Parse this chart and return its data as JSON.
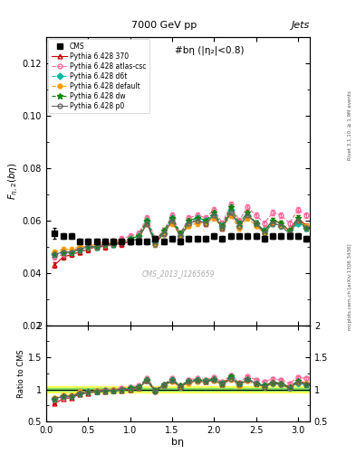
{
  "title_top": "7000 GeV pp",
  "title_right": "Jets",
  "plot_title": "#bη (|η₂|<0.8)",
  "watermark": "CMS_2013_I1265659",
  "xlabel": "bη",
  "ylabel_main": "F_{η,2}(bη)",
  "ylabel_ratio": "Ratio to CMS",
  "right_label": "mcplots.cern.ch [arXiv:1306.3436]",
  "rivet_label": "Rivet 3.1.10; ≥ 1.9M events",
  "xlim": [
    0,
    3.14159
  ],
  "ylim_main": [
    0.02,
    0.13
  ],
  "ylim_ratio": [
    0.5,
    2.0
  ],
  "cms_x": [
    0.1,
    0.2,
    0.3,
    0.4,
    0.5,
    0.6,
    0.7,
    0.8,
    0.9,
    1.0,
    1.1,
    1.2,
    1.3,
    1.4,
    1.5,
    1.6,
    1.7,
    1.8,
    1.9,
    2.0,
    2.1,
    2.2,
    2.3,
    2.4,
    2.5,
    2.6,
    2.7,
    2.8,
    2.9,
    3.0,
    3.1
  ],
  "cms_y": [
    0.055,
    0.054,
    0.054,
    0.052,
    0.052,
    0.052,
    0.052,
    0.052,
    0.052,
    0.052,
    0.052,
    0.052,
    0.053,
    0.052,
    0.053,
    0.052,
    0.053,
    0.053,
    0.053,
    0.054,
    0.053,
    0.054,
    0.054,
    0.054,
    0.054,
    0.053,
    0.054,
    0.054,
    0.054,
    0.054,
    0.053
  ],
  "cms_yerr": [
    0.002,
    0.001,
    0.001,
    0.001,
    0.001,
    0.001,
    0.001,
    0.001,
    0.001,
    0.001,
    0.001,
    0.001,
    0.001,
    0.001,
    0.001,
    0.001,
    0.001,
    0.001,
    0.001,
    0.001,
    0.001,
    0.001,
    0.001,
    0.001,
    0.001,
    0.001,
    0.001,
    0.001,
    0.001,
    0.001,
    0.001
  ],
  "series": [
    {
      "label": "Pythia 6.428 370",
      "color": "#cc0000",
      "linestyle": "-",
      "marker": "^",
      "markerfill": "none",
      "x": [
        0.1,
        0.2,
        0.3,
        0.4,
        0.5,
        0.6,
        0.7,
        0.8,
        0.9,
        1.0,
        1.1,
        1.2,
        1.3,
        1.4,
        1.5,
        1.6,
        1.7,
        1.8,
        1.9,
        2.0,
        2.1,
        2.2,
        2.3,
        2.4,
        2.5,
        2.6,
        2.7,
        2.8,
        2.9,
        3.0,
        3.1
      ],
      "y": [
        0.043,
        0.046,
        0.047,
        0.048,
        0.049,
        0.05,
        0.05,
        0.051,
        0.051,
        0.052,
        0.053,
        0.059,
        0.052,
        0.055,
        0.06,
        0.054,
        0.059,
        0.06,
        0.059,
        0.062,
        0.057,
        0.064,
        0.058,
        0.062,
        0.059,
        0.056,
        0.06,
        0.059,
        0.056,
        0.061,
        0.058
      ],
      "yerr": [
        0.001,
        0.001,
        0.001,
        0.001,
        0.001,
        0.001,
        0.001,
        0.001,
        0.001,
        0.001,
        0.001,
        0.001,
        0.001,
        0.001,
        0.001,
        0.001,
        0.001,
        0.001,
        0.001,
        0.001,
        0.001,
        0.001,
        0.001,
        0.001,
        0.001,
        0.001,
        0.001,
        0.001,
        0.001,
        0.001,
        0.001
      ]
    },
    {
      "label": "Pythia 6.428 atlas-csc",
      "color": "#ff6699",
      "linestyle": "--",
      "marker": "o",
      "markerfill": "none",
      "x": [
        0.1,
        0.2,
        0.3,
        0.4,
        0.5,
        0.6,
        0.7,
        0.8,
        0.9,
        1.0,
        1.1,
        1.2,
        1.3,
        1.4,
        1.5,
        1.6,
        1.7,
        1.8,
        1.9,
        2.0,
        2.1,
        2.2,
        2.3,
        2.4,
        2.5,
        2.6,
        2.7,
        2.8,
        2.9,
        3.0,
        3.1
      ],
      "y": [
        0.046,
        0.047,
        0.048,
        0.05,
        0.05,
        0.051,
        0.052,
        0.052,
        0.053,
        0.054,
        0.055,
        0.061,
        0.053,
        0.056,
        0.062,
        0.055,
        0.061,
        0.062,
        0.061,
        0.064,
        0.059,
        0.066,
        0.06,
        0.065,
        0.062,
        0.059,
        0.063,
        0.062,
        0.059,
        0.064,
        0.062
      ],
      "yerr": [
        0.001,
        0.001,
        0.001,
        0.001,
        0.001,
        0.001,
        0.001,
        0.001,
        0.001,
        0.001,
        0.001,
        0.001,
        0.001,
        0.001,
        0.001,
        0.001,
        0.001,
        0.001,
        0.001,
        0.001,
        0.001,
        0.001,
        0.001,
        0.001,
        0.001,
        0.001,
        0.001,
        0.001,
        0.001,
        0.001,
        0.001
      ]
    },
    {
      "label": "Pythia 6.428 d6t",
      "color": "#00bbaa",
      "linestyle": "--",
      "marker": "D",
      "markerfill": "#00bbaa",
      "x": [
        0.1,
        0.2,
        0.3,
        0.4,
        0.5,
        0.6,
        0.7,
        0.8,
        0.9,
        1.0,
        1.1,
        1.2,
        1.3,
        1.4,
        1.5,
        1.6,
        1.7,
        1.8,
        1.9,
        2.0,
        2.1,
        2.2,
        2.3,
        2.4,
        2.5,
        2.6,
        2.7,
        2.8,
        2.9,
        3.0,
        3.1
      ],
      "y": [
        0.047,
        0.048,
        0.048,
        0.049,
        0.05,
        0.05,
        0.051,
        0.051,
        0.052,
        0.053,
        0.054,
        0.06,
        0.052,
        0.055,
        0.061,
        0.054,
        0.059,
        0.061,
        0.06,
        0.062,
        0.058,
        0.064,
        0.058,
        0.062,
        0.059,
        0.056,
        0.059,
        0.058,
        0.055,
        0.059,
        0.057
      ],
      "yerr": [
        0.001,
        0.001,
        0.001,
        0.001,
        0.001,
        0.001,
        0.001,
        0.001,
        0.001,
        0.001,
        0.001,
        0.001,
        0.001,
        0.001,
        0.001,
        0.001,
        0.001,
        0.001,
        0.001,
        0.001,
        0.001,
        0.001,
        0.001,
        0.001,
        0.001,
        0.001,
        0.001,
        0.001,
        0.001,
        0.001,
        0.001
      ]
    },
    {
      "label": "Pythia 6.428 default",
      "color": "#ff9900",
      "linestyle": "--",
      "marker": "o",
      "markerfill": "#ff9900",
      "x": [
        0.1,
        0.2,
        0.3,
        0.4,
        0.5,
        0.6,
        0.7,
        0.8,
        0.9,
        1.0,
        1.1,
        1.2,
        1.3,
        1.4,
        1.5,
        1.6,
        1.7,
        1.8,
        1.9,
        2.0,
        2.1,
        2.2,
        2.3,
        2.4,
        2.5,
        2.6,
        2.7,
        2.8,
        2.9,
        3.0,
        3.1
      ],
      "y": [
        0.048,
        0.049,
        0.049,
        0.05,
        0.05,
        0.051,
        0.051,
        0.052,
        0.052,
        0.052,
        0.053,
        0.059,
        0.051,
        0.055,
        0.059,
        0.054,
        0.058,
        0.059,
        0.059,
        0.061,
        0.057,
        0.062,
        0.057,
        0.061,
        0.058,
        0.055,
        0.059,
        0.058,
        0.055,
        0.06,
        0.058
      ],
      "yerr": [
        0.001,
        0.001,
        0.001,
        0.001,
        0.001,
        0.001,
        0.001,
        0.001,
        0.001,
        0.001,
        0.001,
        0.001,
        0.001,
        0.001,
        0.001,
        0.001,
        0.001,
        0.001,
        0.001,
        0.001,
        0.001,
        0.001,
        0.001,
        0.001,
        0.001,
        0.001,
        0.001,
        0.001,
        0.001,
        0.001,
        0.001
      ]
    },
    {
      "label": "Pythia 6.428 dw",
      "color": "#008800",
      "linestyle": "--",
      "marker": "*",
      "markerfill": "#008800",
      "x": [
        0.1,
        0.2,
        0.3,
        0.4,
        0.5,
        0.6,
        0.7,
        0.8,
        0.9,
        1.0,
        1.1,
        1.2,
        1.3,
        1.4,
        1.5,
        1.6,
        1.7,
        1.8,
        1.9,
        2.0,
        2.1,
        2.2,
        2.3,
        2.4,
        2.5,
        2.6,
        2.7,
        2.8,
        2.9,
        3.0,
        3.1
      ],
      "y": [
        0.047,
        0.048,
        0.048,
        0.049,
        0.05,
        0.05,
        0.051,
        0.051,
        0.052,
        0.053,
        0.054,
        0.06,
        0.052,
        0.056,
        0.061,
        0.055,
        0.06,
        0.061,
        0.06,
        0.063,
        0.058,
        0.065,
        0.059,
        0.063,
        0.059,
        0.056,
        0.06,
        0.059,
        0.056,
        0.061,
        0.057
      ],
      "yerr": [
        0.001,
        0.001,
        0.001,
        0.001,
        0.001,
        0.001,
        0.001,
        0.001,
        0.001,
        0.001,
        0.001,
        0.001,
        0.001,
        0.001,
        0.001,
        0.001,
        0.001,
        0.001,
        0.001,
        0.001,
        0.001,
        0.001,
        0.001,
        0.001,
        0.001,
        0.001,
        0.001,
        0.001,
        0.001,
        0.001,
        0.001
      ]
    },
    {
      "label": "Pythia 6.428 p0",
      "color": "#666666",
      "linestyle": "-",
      "marker": "o",
      "markerfill": "none",
      "x": [
        0.1,
        0.2,
        0.3,
        0.4,
        0.5,
        0.6,
        0.7,
        0.8,
        0.9,
        1.0,
        1.1,
        1.2,
        1.3,
        1.4,
        1.5,
        1.6,
        1.7,
        1.8,
        1.9,
        2.0,
        2.1,
        2.2,
        2.3,
        2.4,
        2.5,
        2.6,
        2.7,
        2.8,
        2.9,
        3.0,
        3.1
      ],
      "y": [
        0.047,
        0.048,
        0.048,
        0.049,
        0.05,
        0.05,
        0.051,
        0.051,
        0.052,
        0.052,
        0.053,
        0.059,
        0.051,
        0.055,
        0.06,
        0.054,
        0.059,
        0.06,
        0.059,
        0.062,
        0.057,
        0.063,
        0.058,
        0.062,
        0.059,
        0.055,
        0.059,
        0.058,
        0.055,
        0.06,
        0.057
      ],
      "yerr": [
        0.001,
        0.001,
        0.001,
        0.001,
        0.001,
        0.001,
        0.001,
        0.001,
        0.001,
        0.001,
        0.001,
        0.001,
        0.001,
        0.001,
        0.001,
        0.001,
        0.001,
        0.001,
        0.001,
        0.001,
        0.001,
        0.001,
        0.001,
        0.001,
        0.001,
        0.001,
        0.001,
        0.001,
        0.001,
        0.001,
        0.001
      ]
    }
  ],
  "band_yellow": [
    0.95,
    1.05
  ],
  "band_green": [
    0.975,
    1.025
  ]
}
